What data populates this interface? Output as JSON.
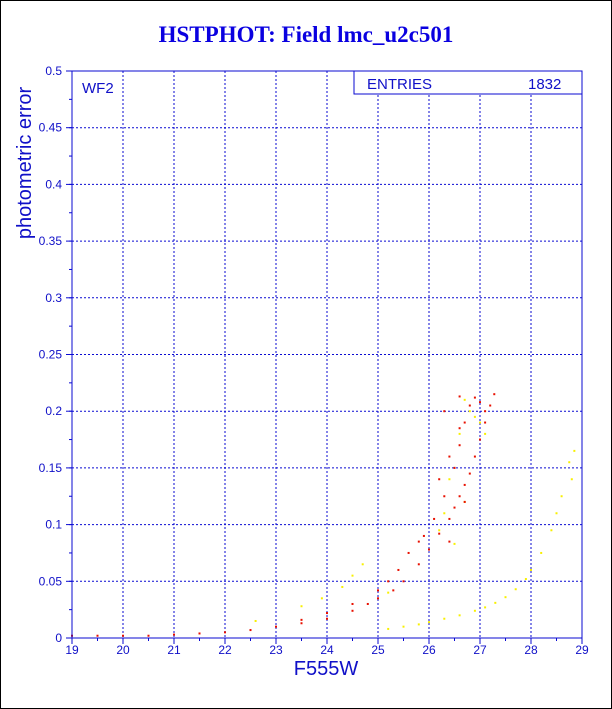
{
  "title": "HSTPHOT: Field lmc_u2c501",
  "chart_data": {
    "type": "scatter",
    "title": "HSTPHOT: Field lmc_u2c501",
    "xlabel": "F555W",
    "ylabel": "photometric error",
    "xlim": [
      19,
      29
    ],
    "ylim": [
      0,
      0.5
    ],
    "xticks": [
      "19",
      "20",
      "21",
      "22",
      "23",
      "24",
      "25",
      "26",
      "27",
      "28",
      "29"
    ],
    "yticks": [
      "0",
      "0.05",
      "0.1",
      "0.15",
      "0.2",
      "0.25",
      "0.3",
      "0.35",
      "0.4",
      "0.45",
      "0.5"
    ],
    "grid": true,
    "panel_label": "WF2",
    "stats_box": {
      "label": "ENTRIES",
      "value": "1832"
    },
    "colors": {
      "axis": "#0a0ad2",
      "grid": "#0a0ad2",
      "main": "#e81000",
      "secondary": "#f8f000",
      "title": "#0a00e0"
    },
    "series": [
      {
        "color": "#e81000",
        "points": [
          [
            19.0,
            0.002
          ],
          [
            19.5,
            0.002
          ],
          [
            20.0,
            0.002
          ],
          [
            20.5,
            0.002
          ],
          [
            21.0,
            0.003
          ],
          [
            21.5,
            0.004
          ],
          [
            22.0,
            0.005
          ],
          [
            22.5,
            0.007
          ],
          [
            23.0,
            0.01
          ],
          [
            23.5,
            0.013
          ],
          [
            24.0,
            0.017
          ],
          [
            24.5,
            0.024
          ],
          [
            24.8,
            0.03
          ],
          [
            25.0,
            0.035
          ],
          [
            25.3,
            0.042
          ],
          [
            25.5,
            0.05
          ],
          [
            25.8,
            0.065
          ],
          [
            26.0,
            0.078
          ],
          [
            26.2,
            0.092
          ],
          [
            26.4,
            0.105
          ],
          [
            26.5,
            0.115
          ],
          [
            26.6,
            0.125
          ],
          [
            26.7,
            0.135
          ],
          [
            26.8,
            0.145
          ],
          [
            26.9,
            0.16
          ],
          [
            27.0,
            0.175
          ],
          [
            27.1,
            0.19
          ],
          [
            27.2,
            0.205
          ],
          [
            27.28,
            0.215
          ],
          [
            25.9,
            0.09
          ],
          [
            26.1,
            0.105
          ],
          [
            26.3,
            0.125
          ],
          [
            26.5,
            0.15
          ],
          [
            26.6,
            0.17
          ],
          [
            26.7,
            0.19
          ],
          [
            26.8,
            0.205
          ],
          [
            26.9,
            0.212
          ],
          [
            27.0,
            0.208
          ],
          [
            27.1,
            0.2
          ],
          [
            26.2,
            0.14
          ],
          [
            26.4,
            0.16
          ],
          [
            26.6,
            0.185
          ],
          [
            25.6,
            0.075
          ],
          [
            25.8,
            0.085
          ],
          [
            25.4,
            0.06
          ],
          [
            25.2,
            0.05
          ],
          [
            25.0,
            0.042
          ],
          [
            24.5,
            0.03
          ],
          [
            24.0,
            0.022
          ],
          [
            23.5,
            0.016
          ],
          [
            26.4,
            0.085
          ],
          [
            26.7,
            0.12
          ],
          [
            26.3,
            0.2
          ],
          [
            26.6,
            0.213
          ]
        ]
      },
      {
        "color": "#f8f000",
        "points": [
          [
            25.2,
            0.008
          ],
          [
            25.5,
            0.01
          ],
          [
            25.8,
            0.012
          ],
          [
            26.0,
            0.014
          ],
          [
            26.3,
            0.017
          ],
          [
            26.6,
            0.02
          ],
          [
            26.9,
            0.024
          ],
          [
            27.1,
            0.027
          ],
          [
            27.3,
            0.031
          ],
          [
            27.5,
            0.036
          ],
          [
            27.7,
            0.043
          ],
          [
            27.9,
            0.052
          ],
          [
            28.0,
            0.06
          ],
          [
            28.2,
            0.075
          ],
          [
            28.4,
            0.095
          ],
          [
            28.6,
            0.125
          ],
          [
            28.75,
            0.155
          ],
          [
            28.85,
            0.165
          ],
          [
            28.8,
            0.14
          ],
          [
            28.5,
            0.11
          ],
          [
            26.5,
            0.15
          ],
          [
            26.3,
            0.11
          ],
          [
            26.6,
            0.18
          ],
          [
            26.8,
            0.2
          ],
          [
            26.7,
            0.21
          ],
          [
            26.9,
            0.195
          ],
          [
            27.0,
            0.19
          ],
          [
            27.1,
            0.18
          ],
          [
            26.4,
            0.14
          ],
          [
            26.2,
            0.095
          ],
          [
            24.5,
            0.055
          ],
          [
            24.3,
            0.045
          ],
          [
            23.9,
            0.035
          ],
          [
            23.5,
            0.028
          ],
          [
            22.6,
            0.015
          ],
          [
            24.7,
            0.065
          ],
          [
            25.2,
            0.04
          ],
          [
            26.7,
            0.12
          ],
          [
            26.5,
            0.083
          ]
        ]
      }
    ]
  }
}
